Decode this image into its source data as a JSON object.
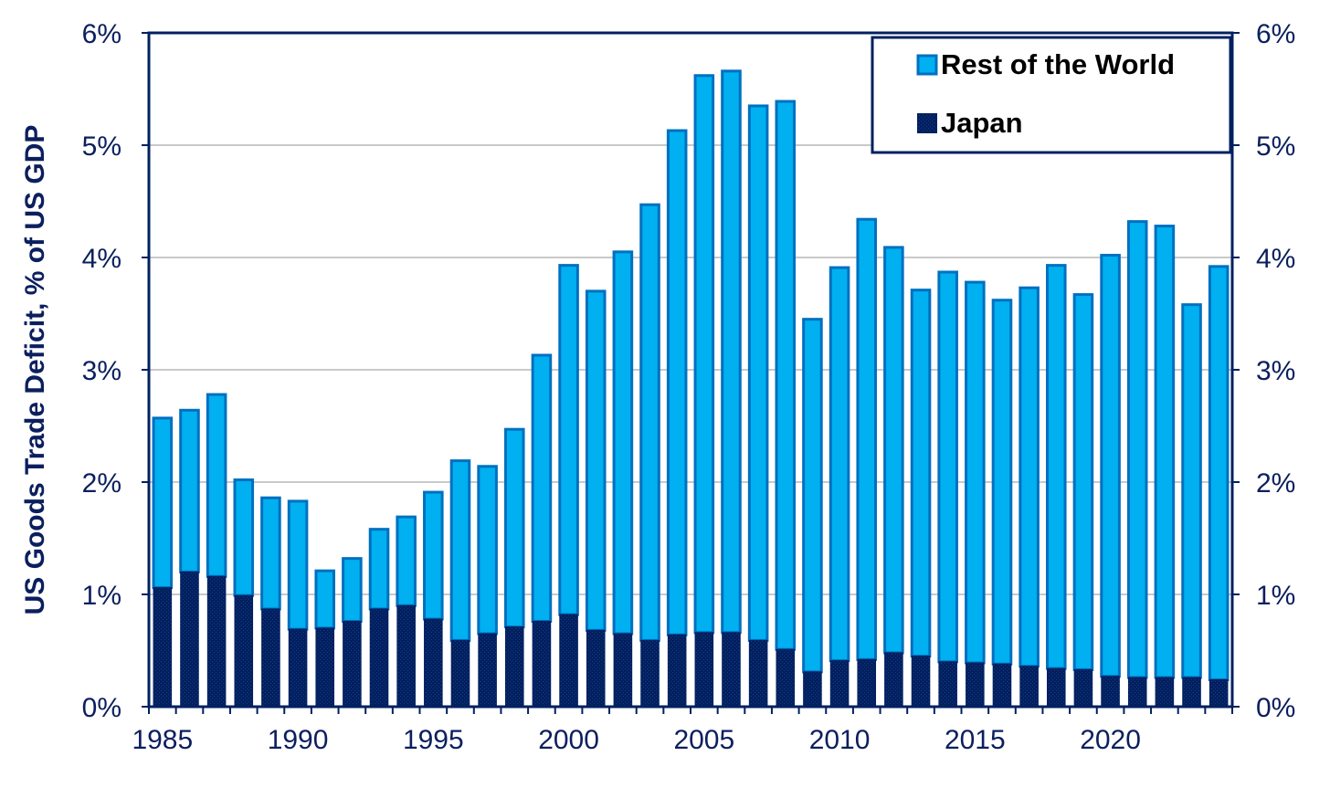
{
  "chart_data": {
    "type": "bar",
    "stacked": true,
    "ylabel": "US Goods Trade Deficit, % of US GDP",
    "xlabel": "",
    "ylim": [
      0,
      6
    ],
    "secondary_ylim": [
      0,
      6
    ],
    "y_ticks": [
      "0%",
      "1%",
      "2%",
      "3%",
      "4%",
      "5%",
      "6%"
    ],
    "x_tick_labels": [
      "1985",
      "1990",
      "1995",
      "2000",
      "2005",
      "2010",
      "2015",
      "2020"
    ],
    "grid": true,
    "legend_position": "top-right",
    "categories": [
      1985,
      1986,
      1987,
      1988,
      1989,
      1990,
      1991,
      1992,
      1993,
      1994,
      1995,
      1996,
      1997,
      1998,
      1999,
      2000,
      2001,
      2002,
      2003,
      2004,
      2005,
      2006,
      2007,
      2008,
      2009,
      2010,
      2011,
      2012,
      2013,
      2014,
      2015,
      2016,
      2017,
      2018,
      2019,
      2020,
      2021,
      2022,
      2023,
      2024
    ],
    "series": [
      {
        "name": "Japan",
        "color": "#002060",
        "values": [
          1.06,
          1.2,
          1.16,
          0.99,
          0.87,
          0.69,
          0.7,
          0.76,
          0.87,
          0.9,
          0.78,
          0.59,
          0.65,
          0.71,
          0.76,
          0.82,
          0.68,
          0.65,
          0.59,
          0.64,
          0.66,
          0.66,
          0.59,
          0.51,
          0.31,
          0.41,
          0.42,
          0.48,
          0.45,
          0.4,
          0.39,
          0.38,
          0.36,
          0.34,
          0.33,
          0.27,
          0.26,
          0.26,
          0.26,
          0.24
        ]
      },
      {
        "name": "Rest of the World",
        "color": "#00B0F0",
        "values": [
          1.51,
          1.44,
          1.62,
          1.03,
          0.99,
          1.14,
          0.51,
          0.56,
          0.71,
          0.79,
          1.13,
          1.6,
          1.49,
          1.76,
          2.37,
          3.11,
          3.02,
          3.4,
          3.88,
          4.49,
          4.96,
          5.0,
          4.76,
          4.88,
          3.14,
          3.5,
          3.92,
          3.61,
          3.26,
          3.47,
          3.39,
          3.24,
          3.37,
          3.59,
          3.34,
          3.75,
          4.06,
          4.02,
          3.32,
          3.68
        ]
      }
    ]
  },
  "legend": {
    "items": [
      {
        "label": "Rest of the World",
        "color": "#00B0F0"
      },
      {
        "label": "Japan",
        "color": "#002060"
      }
    ]
  }
}
